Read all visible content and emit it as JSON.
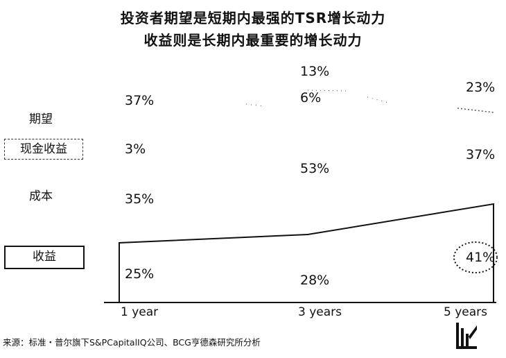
{
  "chart_data": {
    "type": "area",
    "title": "投资者期望是短期内最强的TSR增长动力",
    "subtitle": "收益则是长期内最重要的增长动力",
    "x": [
      "1 year",
      "3 years",
      "5 years"
    ],
    "series": [
      {
        "name": "收益",
        "values": [
          "25%",
          "28%",
          "41%"
        ]
      },
      {
        "name": "成本",
        "values": [
          "35%",
          "53%",
          "37%"
        ]
      },
      {
        "name": "现金收益",
        "values": [
          "3%",
          "6%",
          "23%"
        ]
      },
      {
        "name": "期望",
        "values": [
          "37%",
          "13%",
          null
        ]
      }
    ],
    "highlight": "41%"
  },
  "source": "来源：标准・普尔旗下S&PCapitalIQ公司、BCG亨德森研究所分析"
}
